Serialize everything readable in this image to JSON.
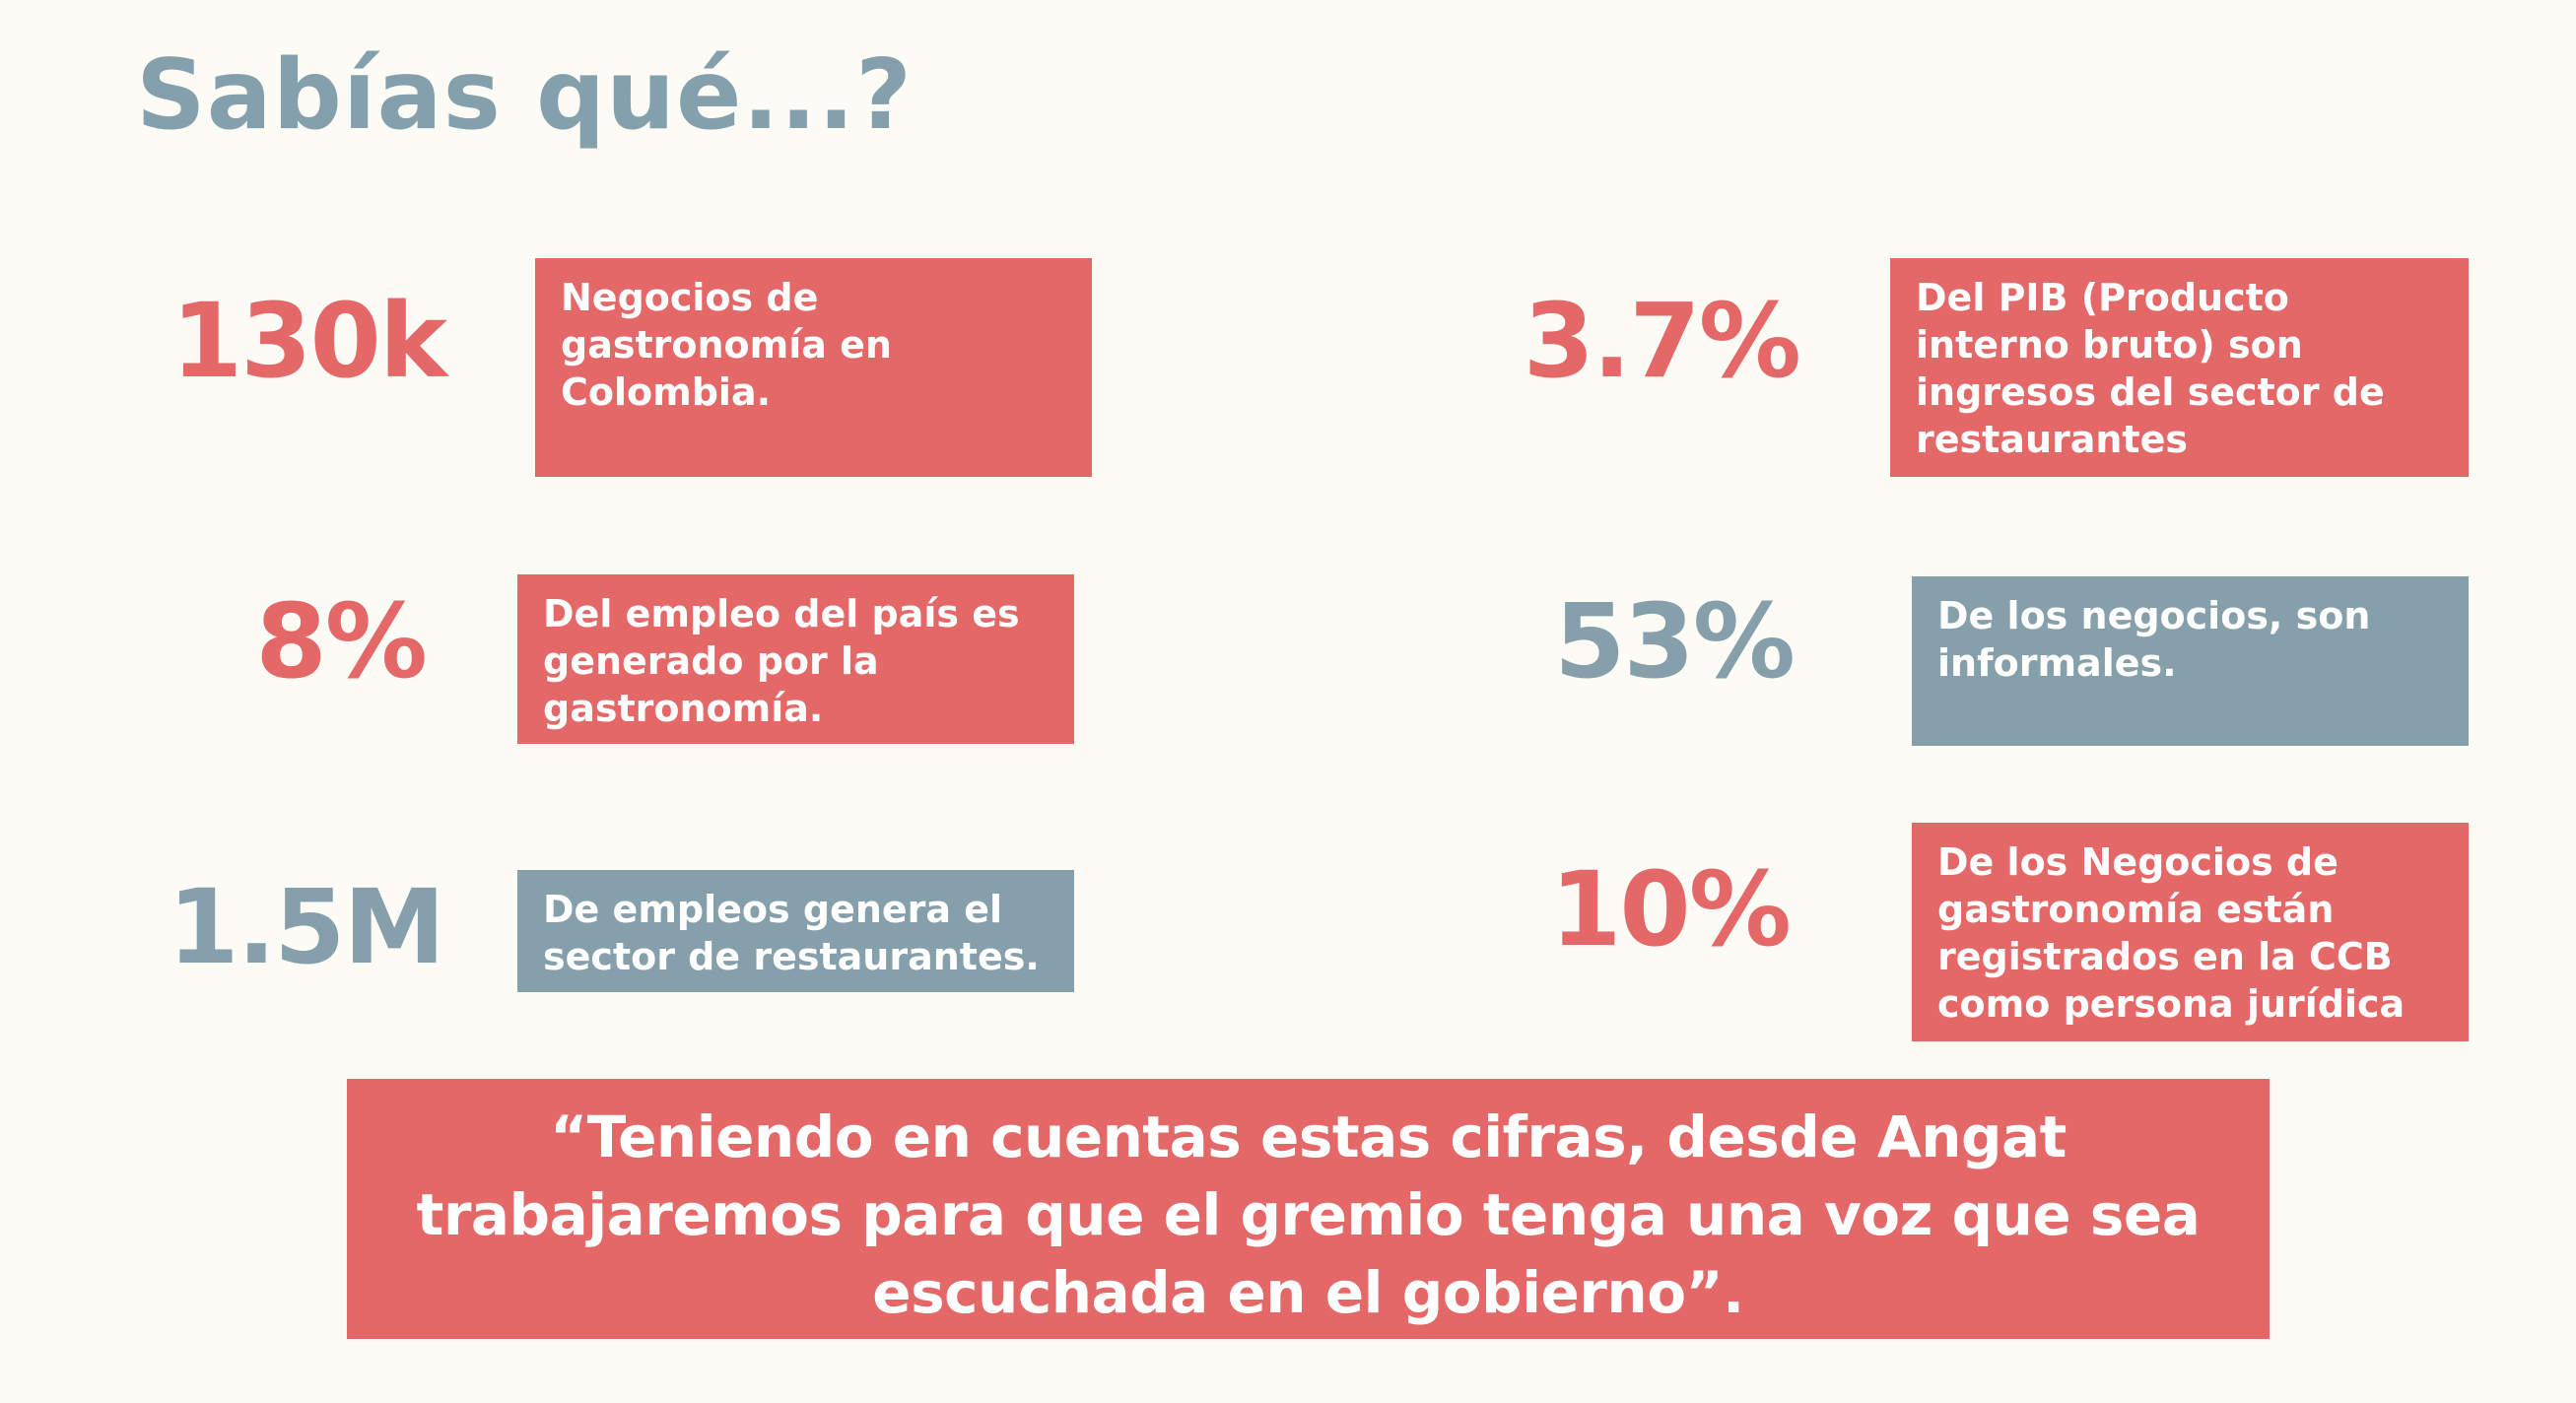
{
  "title": "Sabías qué...?",
  "stats": [
    {
      "value": "130k",
      "description": "Negocios de gastronomía en Colombia."
    },
    {
      "value": "3.7%",
      "description": "Del PIB (Producto interno bruto) son ingresos del sector de restaurantes"
    },
    {
      "value": "8%",
      "description": "Del empleo del país es generado por la gastronomía."
    },
    {
      "value": "53%",
      "description": "De los negocios, son informales."
    },
    {
      "value": "1.5M",
      "description": "De empleos genera el sector de restaurantes."
    },
    {
      "value": "10%",
      "description": "De los Negocios de gastronomía están registrados en la CCB como persona jurídica"
    }
  ],
  "quote": "“Teniendo en cuentas estas cifras, desde Angat trabajaremos para  que el gremio tenga una voz que sea escuchada en el gobierno”.",
  "colors": {
    "background": "#fdfbf6",
    "red": "#e46868",
    "blue": "#85a0ab"
  }
}
